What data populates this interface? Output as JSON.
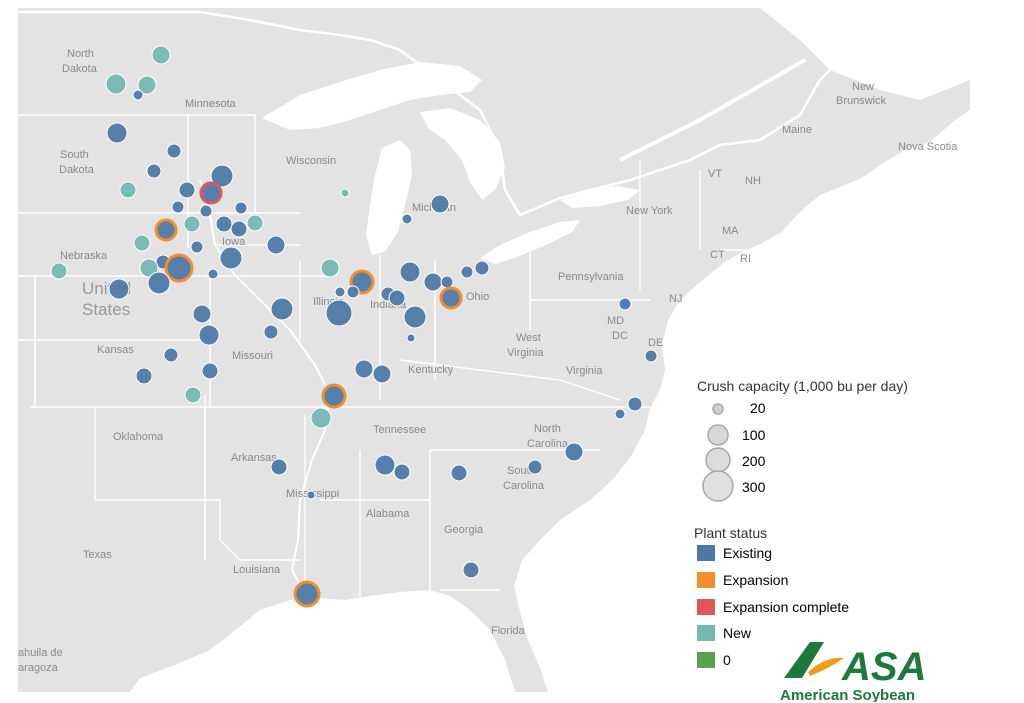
{
  "colors": {
    "existing": "#4e79a7",
    "expansion": "#f28e2b",
    "expansion_complete": "#e15759",
    "new": "#76b7b2",
    "zero": "#59a14f",
    "land": "#e3e3e3",
    "water": "#ffffff",
    "brand_green": "#1e7a3c",
    "brand_orange": "#f39c1a"
  },
  "map_labels": {
    "north_dakota_1": "North",
    "north_dakota_2": "Dakota",
    "south_dakota_1": "South",
    "south_dakota_2": "Dakota",
    "minnesota": "Minnesota",
    "wisconsin": "Wisconsin",
    "michigan": "Michigan",
    "nebraska": "Nebraska",
    "iowa": "Iowa",
    "illinois": "Illinois",
    "indiana": "Indiana",
    "ohio": "Ohio",
    "united_1": "United",
    "united_2": "States",
    "kansas": "Kansas",
    "missouri": "Missouri",
    "kentucky": "Kentucky",
    "west_virginia_1": "West",
    "west_virginia_2": "Virginia",
    "virginia": "Virginia",
    "pennsylvania": "Pennsylvania",
    "new_york": "New York",
    "vt": "VT",
    "nh": "NH",
    "ma": "MA",
    "ct": "CT",
    "ri": "RI",
    "nj": "NJ",
    "md": "MD",
    "dc": "DC",
    "de": "DE",
    "maine": "Maine",
    "new_brunswick_1": "New",
    "new_brunswick_2": "Brunswick",
    "nova_scotia": "Nova Scotia",
    "oklahoma": "Oklahoma",
    "tennessee": "Tennessee",
    "north_carolina_1": "North",
    "north_carolina_2": "Carolina",
    "south_carolina_1": "South",
    "south_carolina_2": "Carolina",
    "arkansas": "Arkansas",
    "mississippi": "Mississippi",
    "alabama": "Alabama",
    "georgia": "Georgia",
    "texas": "Texas",
    "louisiana": "Louisiana",
    "florida": "Florida",
    "coahuila_1": "ahuila de",
    "coahuila_2": "aragoza"
  },
  "legend": {
    "size_title": "Crush capacity (1,000 bu per day)",
    "sizes": [
      "20",
      "100",
      "200",
      "300"
    ],
    "status_title": "Plant status",
    "statuses": [
      {
        "label": "Existing",
        "color_key": "existing"
      },
      {
        "label": "Expansion",
        "color_key": "expansion"
      },
      {
        "label": "Expansion complete",
        "color_key": "expansion_complete"
      },
      {
        "label": "New",
        "color_key": "new"
      },
      {
        "label": "0",
        "color_key": "zero"
      }
    ]
  },
  "logo": {
    "wordmark": "ASA",
    "tagline": "American Soybean"
  }
}
